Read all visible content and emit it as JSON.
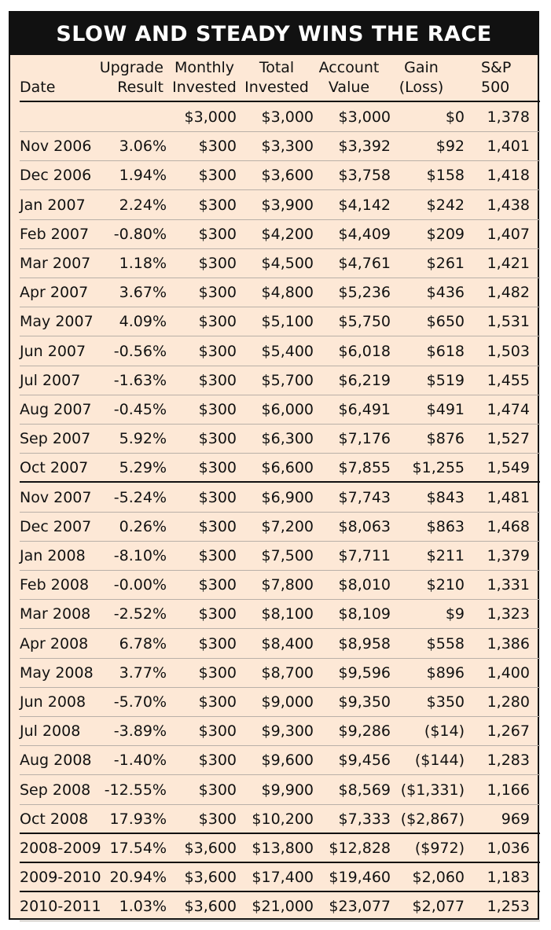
{
  "title": "SLOW AND STEADY WINS THE RACE",
  "headers": {
    "date": [
      "Date"
    ],
    "upgrade": [
      "Upgrade",
      "Result"
    ],
    "monthly": [
      "Monthly",
      "Invested"
    ],
    "total": [
      "Total",
      "Invested"
    ],
    "account": [
      "Account",
      "Value"
    ],
    "gain": [
      "Gain",
      "(Loss)"
    ],
    "sp": [
      "S&P",
      "500"
    ]
  },
  "rows": [
    {
      "date": "",
      "result": "",
      "monthly": "$3,000",
      "total": "$3,000",
      "account": "$3,000",
      "gain": "$0",
      "sp": "1,378"
    },
    {
      "date": "Nov 2006",
      "result": "3.06%",
      "monthly": "$300",
      "total": "$3,300",
      "account": "$3,392",
      "gain": "$92",
      "sp": "1,401"
    },
    {
      "date": "Dec 2006",
      "result": "1.94%",
      "monthly": "$300",
      "total": "$3,600",
      "account": "$3,758",
      "gain": "$158",
      "sp": "1,418"
    },
    {
      "date": "Jan 2007",
      "result": "2.24%",
      "monthly": "$300",
      "total": "$3,900",
      "account": "$4,142",
      "gain": "$242",
      "sp": "1,438"
    },
    {
      "date": "Feb 2007",
      "result": "-0.80%",
      "monthly": "$300",
      "total": "$4,200",
      "account": "$4,409",
      "gain": "$209",
      "sp": "1,407"
    },
    {
      "date": "Mar 2007",
      "result": "1.18%",
      "monthly": "$300",
      "total": "$4,500",
      "account": "$4,761",
      "gain": "$261",
      "sp": "1,421"
    },
    {
      "date": "Apr 2007",
      "result": "3.67%",
      "monthly": "$300",
      "total": "$4,800",
      "account": "$5,236",
      "gain": "$436",
      "sp": "1,482"
    },
    {
      "date": "May 2007",
      "result": "4.09%",
      "monthly": "$300",
      "total": "$5,100",
      "account": "$5,750",
      "gain": "$650",
      "sp": "1,531"
    },
    {
      "date": "Jun 2007",
      "result": "-0.56%",
      "monthly": "$300",
      "total": "$5,400",
      "account": "$6,018",
      "gain": "$618",
      "sp": "1,503"
    },
    {
      "date": "Jul 2007",
      "result": "-1.63%",
      "monthly": "$300",
      "total": "$5,700",
      "account": "$6,219",
      "gain": "$519",
      "sp": "1,455"
    },
    {
      "date": "Aug 2007",
      "result": "-0.45%",
      "monthly": "$300",
      "total": "$6,000",
      "account": "$6,491",
      "gain": "$491",
      "sp": "1,474"
    },
    {
      "date": "Sep 2007",
      "result": "5.92%",
      "monthly": "$300",
      "total": "$6,300",
      "account": "$7,176",
      "gain": "$876",
      "sp": "1,527"
    },
    {
      "date": "Oct 2007",
      "result": "5.29%",
      "monthly": "$300",
      "total": "$6,600",
      "account": "$7,855",
      "gain": "$1,255",
      "sp": "1,549"
    },
    {
      "date": "Nov 2007",
      "result": "-5.24%",
      "monthly": "$300",
      "total": "$6,900",
      "account": "$7,743",
      "gain": "$843",
      "sp": "1,481"
    },
    {
      "date": "Dec 2007",
      "result": "0.26%",
      "monthly": "$300",
      "total": "$7,200",
      "account": "$8,063",
      "gain": "$863",
      "sp": "1,468"
    },
    {
      "date": "Jan 2008",
      "result": "-8.10%",
      "monthly": "$300",
      "total": "$7,500",
      "account": "$7,711",
      "gain": "$211",
      "sp": "1,379"
    },
    {
      "date": "Feb 2008",
      "result": "-0.00%",
      "monthly": "$300",
      "total": "$7,800",
      "account": "$8,010",
      "gain": "$210",
      "sp": "1,331"
    },
    {
      "date": "Mar 2008",
      "result": "-2.52%",
      "monthly": "$300",
      "total": "$8,100",
      "account": "$8,109",
      "gain": "$9",
      "sp": "1,323"
    },
    {
      "date": "Apr 2008",
      "result": "6.78%",
      "monthly": "$300",
      "total": "$8,400",
      "account": "$8,958",
      "gain": "$558",
      "sp": "1,386"
    },
    {
      "date": "May 2008",
      "result": "3.77%",
      "monthly": "$300",
      "total": "$8,700",
      "account": "$9,596",
      "gain": "$896",
      "sp": "1,400"
    },
    {
      "date": "Jun 2008",
      "result": "-5.70%",
      "monthly": "$300",
      "total": "$9,000",
      "account": "$9,350",
      "gain": "$350",
      "sp": "1,280"
    },
    {
      "date": "Jul 2008",
      "result": "-3.89%",
      "monthly": "$300",
      "total": "$9,300",
      "account": "$9,286",
      "gain": "($14)",
      "sp": "1,267"
    },
    {
      "date": "Aug 2008",
      "result": "-1.40%",
      "monthly": "$300",
      "total": "$9,600",
      "account": "$9,456",
      "gain": "($144)",
      "sp": "1,283"
    },
    {
      "date": "Sep 2008",
      "result": "-12.55%",
      "monthly": "$300",
      "total": "$9,900",
      "account": "$8,569",
      "gain": "($1,331)",
      "sp": "1,166"
    },
    {
      "date": "Oct 2008",
      "result": "17.93%",
      "monthly": "$300",
      "total": "$10,200",
      "account": "$7,333",
      "gain": "($2,867)",
      "sp": "969"
    },
    {
      "date": "2008-2009",
      "result": "17.54%",
      "monthly": "$3,600",
      "total": "$13,800",
      "account": "$12,828",
      "gain": "($972)",
      "sp": "1,036"
    },
    {
      "date": "2009-2010",
      "result": "20.94%",
      "monthly": "$3,600",
      "total": "$17,400",
      "account": "$19,460",
      "gain": "$2,060",
      "sp": "1,183"
    },
    {
      "date": "2010-2011",
      "result": "1.03%",
      "monthly": "$3,600",
      "total": "$21,000",
      "account": "$23,077",
      "gain": "$2,077",
      "sp": "1,253"
    }
  ]
}
